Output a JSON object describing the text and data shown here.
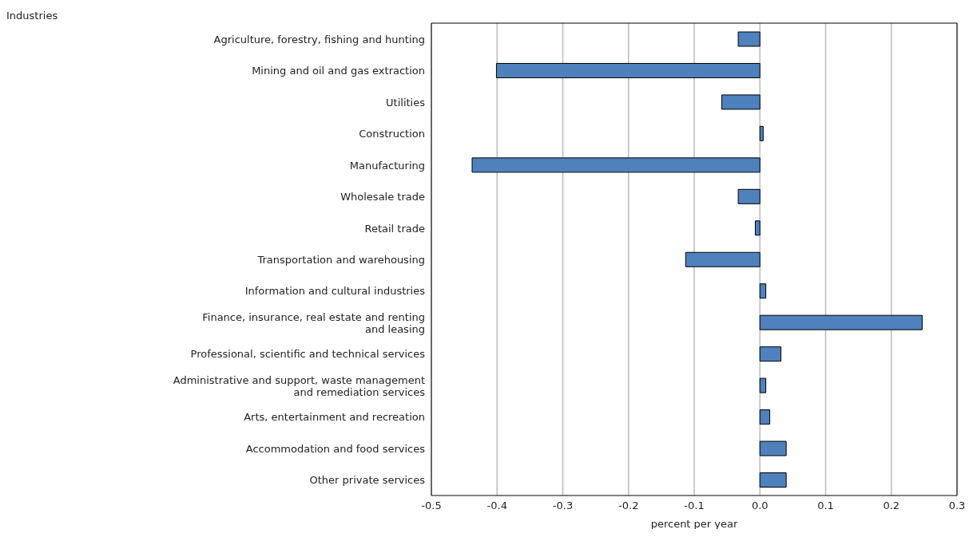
{
  "chart_data": {
    "type": "bar",
    "orientation": "horizontal",
    "annotations": [
      "Industries"
    ],
    "xlabel": "percent per year",
    "categories": [
      "Agriculture, forestry, fishing and hunting",
      "Mining and oil and gas extraction",
      "Utilities",
      "Construction",
      "Manufacturing",
      "Wholesale trade",
      "Retail trade",
      "Transportation and warehousing",
      "Information and cultural industries",
      "Finance, insurance, real estate and renting and leasing",
      "Professional, scientific and technical services",
      "Administrative and support, waste management and remediation services",
      "Arts, entertainment and recreation",
      "Accommodation and food services",
      "Other private services"
    ],
    "values": [
      -0.033,
      -0.401,
      -0.058,
      0.005,
      -0.438,
      -0.033,
      -0.007,
      -0.113,
      0.009,
      0.247,
      0.032,
      0.009,
      0.015,
      0.04,
      0.04
    ],
    "color": "#4f81bd",
    "xlim": [
      -0.5,
      0.3
    ],
    "xticks": [
      {
        "value": -0.5,
        "label": "-0.5"
      },
      {
        "value": -0.4,
        "label": "-0.4"
      },
      {
        "value": -0.3,
        "label": "-0.3"
      },
      {
        "value": -0.2,
        "label": "-0.2"
      },
      {
        "value": -0.1,
        "label": "-0.1"
      },
      {
        "value": 0,
        "label": "0.0"
      },
      {
        "value": 0.1,
        "label": "0.1"
      },
      {
        "value": 0.2,
        "label": "0.2"
      },
      {
        "value": 0.3,
        "label": "0.3"
      }
    ],
    "grid": "x",
    "legend": false
  }
}
